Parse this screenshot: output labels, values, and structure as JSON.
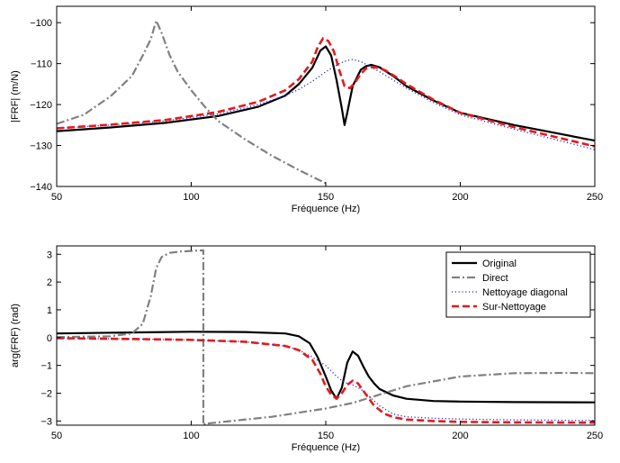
{
  "chart_data": [
    {
      "type": "line",
      "xlabel": "Fréquence (Hz)",
      "ylabel": "|FRF| (m/N)",
      "xlim": [
        50,
        250
      ],
      "ylim": [
        -140,
        -96
      ],
      "xticks": [
        50,
        100,
        150,
        200,
        250
      ],
      "yticks": [
        -140,
        -130,
        -120,
        -110,
        -100
      ],
      "grid": false,
      "series": [
        {
          "name": "Original",
          "color": "#000000",
          "style": "solid",
          "x": [
            50,
            70,
            90,
            110,
            125,
            135,
            140,
            145,
            148,
            150,
            152,
            154,
            156,
            157,
            158,
            160,
            163,
            165,
            167,
            170,
            175,
            180,
            190,
            200,
            220,
            250
          ],
          "y": [
            -126.5,
            -125.6,
            -124.5,
            -122.8,
            -120.5,
            -117.8,
            -115.0,
            -111.0,
            -106.8,
            -105.8,
            -108.0,
            -114.0,
            -121.0,
            -125.0,
            -122.0,
            -115.5,
            -111.5,
            -110.6,
            -110.3,
            -110.9,
            -113.0,
            -115.5,
            -119.0,
            -122.0,
            -125.0,
            -128.8
          ]
        },
        {
          "name": "Direct",
          "color": "#808080",
          "style": "dashdot",
          "x": [
            50,
            60,
            70,
            78,
            82,
            85,
            87,
            89,
            92,
            95,
            100,
            105,
            110,
            120,
            130,
            140,
            150
          ],
          "y": [
            -124.7,
            -122.5,
            -118.0,
            -113.0,
            -108.0,
            -104.0,
            -99.5,
            -102.5,
            -108.0,
            -112.0,
            -116.5,
            -120.5,
            -124.0,
            -128.5,
            -132.5,
            -136.0,
            -139.2
          ]
        },
        {
          "name": "Nettoyage diagonal",
          "color": "#2a2ad8",
          "style": "dotted",
          "x": [
            50,
            70,
            90,
            110,
            125,
            135,
            140,
            145,
            150,
            155,
            158,
            160,
            163,
            166,
            170,
            175,
            180,
            190,
            200,
            220,
            250
          ],
          "y": [
            -125.8,
            -125.0,
            -124.0,
            -122.3,
            -120.0,
            -117.8,
            -116.3,
            -114.3,
            -112.0,
            -110.0,
            -109.2,
            -109.0,
            -109.5,
            -110.5,
            -112.0,
            -114.0,
            -116.0,
            -119.5,
            -122.5,
            -126.0,
            -131.0
          ]
        },
        {
          "name": "Sur-Nettoyage",
          "color": "#e31a1c",
          "style": "dashed",
          "x": [
            50,
            70,
            90,
            110,
            125,
            135,
            140,
            145,
            147,
            149,
            151,
            153,
            155,
            157,
            159,
            161,
            163,
            165,
            168,
            172,
            176,
            180,
            190,
            200,
            220,
            250
          ],
          "y": [
            -125.8,
            -124.9,
            -123.8,
            -121.8,
            -119.3,
            -116.5,
            -113.8,
            -109.5,
            -106.0,
            -103.8,
            -104.5,
            -107.0,
            -111.5,
            -115.5,
            -116.0,
            -114.5,
            -112.5,
            -111.2,
            -110.8,
            -111.6,
            -113.2,
            -115.0,
            -118.8,
            -122.0,
            -125.5,
            -130.2
          ]
        }
      ]
    },
    {
      "type": "line",
      "xlabel": "Fréquence (Hz)",
      "ylabel": "arg(FRF) (rad)",
      "xlim": [
        50,
        250
      ],
      "ylim": [
        -3.15,
        3.3
      ],
      "xticks": [
        50,
        100,
        150,
        200,
        250
      ],
      "yticks": [
        -3,
        -2,
        -1,
        0,
        1,
        2,
        3
      ],
      "grid": false,
      "legend": "top-right",
      "series": [
        {
          "name": "Original",
          "color": "#000000",
          "style": "solid",
          "x": [
            50,
            80,
            100,
            120,
            135,
            140,
            144,
            147,
            150,
            152,
            154,
            156,
            158,
            160,
            162,
            164,
            166,
            168,
            170,
            175,
            180,
            190,
            200,
            220,
            250
          ],
          "y": [
            0.15,
            0.19,
            0.21,
            0.2,
            0.15,
            0.05,
            -0.2,
            -0.7,
            -1.4,
            -1.9,
            -2.2,
            -1.8,
            -0.9,
            -0.5,
            -0.65,
            -1.05,
            -1.4,
            -1.65,
            -1.85,
            -2.08,
            -2.2,
            -2.28,
            -2.3,
            -2.32,
            -2.33
          ]
        },
        {
          "name": "Direct",
          "color": "#808080",
          "style": "dashdot",
          "x": [
            50,
            70,
            78,
            82,
            85,
            87,
            89,
            92,
            96,
            100,
            104.5,
            104.5,
            105,
            105,
            110,
            130,
            150,
            160,
            170,
            180,
            200,
            220,
            240,
            250
          ],
          "y": [
            0.02,
            0.05,
            0.15,
            0.5,
            1.5,
            2.5,
            2.9,
            3.05,
            3.1,
            3.12,
            3.14,
            -3.14,
            -3.14,
            -3.1,
            -3.05,
            -2.85,
            -2.55,
            -2.35,
            -2.05,
            -1.75,
            -1.4,
            -1.28,
            -1.27,
            -1.28
          ]
        },
        {
          "name": "Nettoyage diagonal",
          "color": "#2a2ad8",
          "style": "dotted",
          "x": [
            50,
            80,
            100,
            120,
            135,
            140,
            145,
            150,
            153,
            156,
            158,
            160,
            163,
            166,
            170,
            175,
            180,
            190,
            200,
            220,
            250
          ],
          "y": [
            -0.02,
            -0.05,
            -0.08,
            -0.15,
            -0.3,
            -0.45,
            -0.7,
            -1.0,
            -1.3,
            -1.55,
            -1.65,
            -1.7,
            -1.85,
            -2.1,
            -2.45,
            -2.75,
            -2.85,
            -2.9,
            -2.93,
            -2.96,
            -2.98
          ]
        },
        {
          "name": "Sur-Nettoyage",
          "color": "#e31a1c",
          "style": "dashed",
          "x": [
            50,
            80,
            100,
            120,
            135,
            140,
            145,
            148,
            150,
            152,
            154,
            156,
            158,
            160,
            162,
            165,
            168,
            172,
            176,
            180,
            190,
            200,
            220,
            250
          ],
          "y": [
            -0.02,
            -0.05,
            -0.08,
            -0.15,
            -0.3,
            -0.45,
            -0.8,
            -1.3,
            -1.75,
            -2.05,
            -2.2,
            -2.0,
            -1.7,
            -1.55,
            -1.65,
            -2.05,
            -2.45,
            -2.75,
            -2.88,
            -2.95,
            -3.0,
            -3.03,
            -3.05,
            -3.06
          ]
        }
      ]
    }
  ]
}
